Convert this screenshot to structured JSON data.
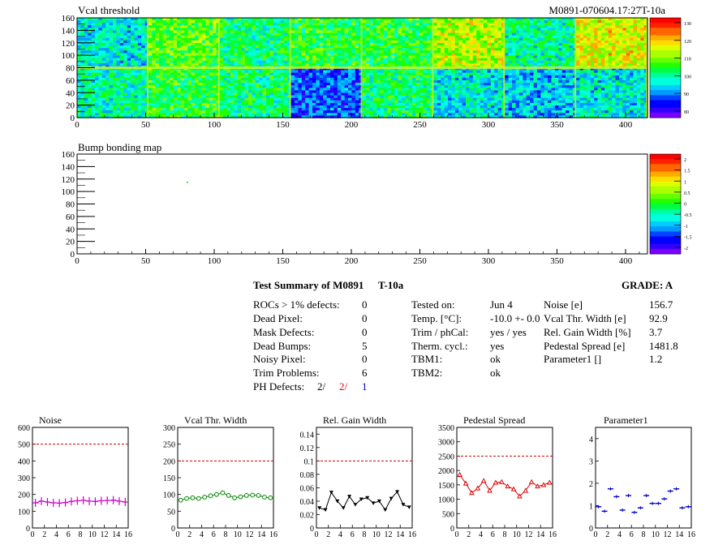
{
  "header": {
    "vcal_title": "Vcal threshold",
    "module_id": "M0891-070604.17:27T-10a",
    "bump_title": "Bump bonding map"
  },
  "maps": {
    "xticks": [
      "0",
      "50",
      "100",
      "150",
      "200",
      "250",
      "300",
      "350",
      "400"
    ],
    "xrange": [
      0,
      416
    ],
    "yticks": [
      "0",
      "20",
      "40",
      "60",
      "80",
      "100",
      "120",
      "140",
      "160"
    ],
    "yrange": [
      0,
      160
    ],
    "vcal_palette": [
      "130",
      "120",
      "110",
      "100",
      "90",
      "80"
    ],
    "bump_palette": [
      "2",
      "1.5",
      "1",
      "0.5",
      "0",
      "-0.5",
      "-1",
      "-1.5",
      "-2"
    ],
    "roc_means": [
      [
        0.35,
        0.55,
        0.45,
        0.5,
        0.5,
        0.65,
        0.4,
        0.7
      ],
      [
        0.4,
        0.5,
        0.45,
        0.2,
        0.45,
        0.35,
        0.3,
        0.35
      ]
    ]
  },
  "summary": {
    "title": "Test Summary of M0891",
    "temp_label": "T-10a",
    "grade_label": "GRADE:  A",
    "left_rows": [
      {
        "label": "ROCs > 1% defects:",
        "value": "0"
      },
      {
        "label": "Dead Pixel:",
        "value": "0"
      },
      {
        "label": "Mask Defects:",
        "value": "0"
      },
      {
        "label": "Dead Bumps:",
        "value": "5"
      },
      {
        "label": "Noisy Pixel:",
        "value": "0"
      },
      {
        "label": "Trim Problems:",
        "value": "6"
      }
    ],
    "ph_label": "PH Defects:",
    "ph_values": [
      "2/",
      "2/",
      "1"
    ],
    "ph_colors": [
      "#000000",
      "#e00000",
      "#0000cc"
    ],
    "mid_rows": [
      {
        "label": "Tested on:",
        "value": "Jun 4"
      },
      {
        "label": "Temp. [°C]:",
        "value": "-10.0 +- 0.0"
      },
      {
        "label": "Trim / phCal:",
        "value": "yes / yes"
      },
      {
        "label": "Therm. cycl.:",
        "value": "yes"
      },
      {
        "label": "TBM1:",
        "value": "ok"
      },
      {
        "label": "TBM2:",
        "value": "ok"
      }
    ],
    "right_rows": [
      {
        "label": "Noise [e]",
        "value": "156.7"
      },
      {
        "label": "Vcal Thr. Width [e]",
        "value": "92.9"
      },
      {
        "label": "Rel. Gain Width [%]",
        "value": "3.7"
      },
      {
        "label": "Pedestal Spread [e]",
        "value": "1481.8"
      },
      {
        "label": "Parameter1 []",
        "value": "1.2"
      }
    ]
  },
  "chart_data": [
    {
      "type": "line",
      "title": "Noise",
      "color": "#cc00cc",
      "marker": "cross",
      "x": [
        0,
        1,
        2,
        3,
        4,
        5,
        6,
        7,
        8,
        9,
        10,
        11,
        12,
        13,
        14,
        15
      ],
      "values": [
        150,
        160,
        155,
        150,
        148,
        152,
        158,
        162,
        165,
        160,
        158,
        162,
        164,
        166,
        160,
        155
      ],
      "ylim": [
        0,
        600
      ],
      "yticks": [
        0,
        100,
        200,
        300,
        400,
        500,
        600
      ],
      "ref": 500,
      "xticks": [
        0,
        2,
        4,
        6,
        8,
        10,
        12,
        14,
        16
      ]
    },
    {
      "type": "line",
      "title": "Vcal Thr. Width",
      "color": "#008800",
      "marker": "circle",
      "x": [
        0,
        1,
        2,
        3,
        4,
        5,
        6,
        7,
        8,
        9,
        10,
        11,
        12,
        13,
        14,
        15
      ],
      "values": [
        83,
        88,
        90,
        88,
        92,
        96,
        100,
        105,
        97,
        90,
        93,
        97,
        98,
        97,
        92,
        90
      ],
      "ylim": [
        0,
        300
      ],
      "yticks": [
        0,
        50,
        100,
        150,
        200,
        250,
        300
      ],
      "ref": 200,
      "xticks": [
        0,
        2,
        4,
        6,
        8,
        10,
        12,
        14,
        16
      ]
    },
    {
      "type": "line",
      "title": "Rel. Gain Width",
      "color": "#000000",
      "marker": "triangle-down",
      "x": [
        0,
        1,
        2,
        3,
        4,
        5,
        6,
        7,
        8,
        9,
        10,
        11,
        12,
        13,
        14,
        15
      ],
      "values": [
        0.03,
        0.027,
        0.053,
        0.04,
        0.03,
        0.047,
        0.035,
        0.043,
        0.045,
        0.037,
        0.04,
        0.027,
        0.044,
        0.054,
        0.035,
        0.031
      ],
      "ylim": [
        0,
        0.15
      ],
      "yticks": [
        0,
        0.02,
        0.04,
        0.06,
        0.08,
        0.1,
        0.12,
        0.14
      ],
      "ref": 0.1,
      "xticks": [
        0,
        2,
        4,
        6,
        8,
        10,
        12,
        14,
        16
      ]
    },
    {
      "type": "line",
      "title": "Pedestal Spread",
      "color": "#dd0000",
      "marker": "triangle-up",
      "x": [
        0,
        1,
        2,
        3,
        4,
        5,
        6,
        7,
        8,
        9,
        10,
        11,
        12,
        13,
        14,
        15
      ],
      "values": [
        1850,
        1550,
        1220,
        1380,
        1640,
        1300,
        1580,
        1600,
        1450,
        1350,
        1100,
        1300,
        1600,
        1450,
        1500,
        1580
      ],
      "ylim": [
        0,
        3500
      ],
      "yticks": [
        0,
        500,
        1000,
        1500,
        2000,
        2500,
        3000,
        3500
      ],
      "ref": 2500,
      "xticks": [
        0,
        2,
        4,
        6,
        8,
        10,
        12,
        14,
        16
      ]
    },
    {
      "type": "scatter",
      "title": "Parameter1",
      "color": "#0000cc",
      "marker": "hbar",
      "x": [
        0,
        1,
        2,
        3,
        4,
        5,
        6,
        7,
        8,
        9,
        10,
        11,
        12,
        13,
        14,
        15
      ],
      "values": [
        0.95,
        0.75,
        1.75,
        1.4,
        0.8,
        1.45,
        0.7,
        0.9,
        1.45,
        1.1,
        1.1,
        1.3,
        1.65,
        1.75,
        0.9,
        0.95
      ],
      "ylim": [
        0,
        4.5
      ],
      "yticks": [
        0,
        1,
        2,
        3,
        4
      ],
      "ref": null,
      "xticks": [
        0,
        2,
        4,
        6,
        8,
        10,
        12,
        14,
        16
      ]
    }
  ]
}
